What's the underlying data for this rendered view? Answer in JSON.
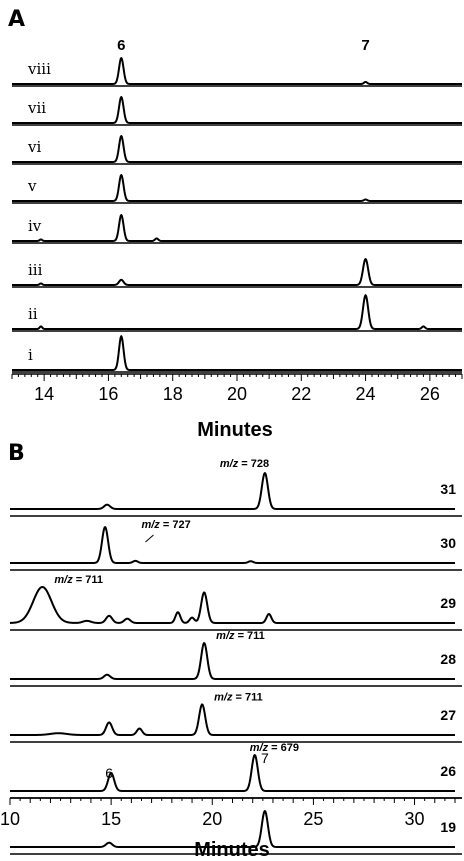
{
  "chart_data": [
    {
      "type": "line",
      "panel": "A",
      "xlabel": "Minutes",
      "xlim": [
        13,
        27
      ],
      "x_ticks": [
        14,
        16,
        18,
        20,
        22,
        24,
        26
      ],
      "peak_labels": [
        {
          "text": "6",
          "x": 16.4
        },
        {
          "text": "7",
          "x": 24.0
        }
      ],
      "series": [
        {
          "name": "viii",
          "peaks": [
            {
              "x": 16.4,
              "h": 1.0,
              "w": 0.07
            },
            {
              "x": 24.0,
              "h": 0.08,
              "w": 0.05
            }
          ]
        },
        {
          "name": "vii",
          "peaks": [
            {
              "x": 16.4,
              "h": 1.0,
              "w": 0.07
            }
          ]
        },
        {
          "name": "vi",
          "peaks": [
            {
              "x": 16.4,
              "h": 1.0,
              "w": 0.07
            }
          ]
        },
        {
          "name": "v",
          "peaks": [
            {
              "x": 16.4,
              "h": 1.0,
              "w": 0.07
            },
            {
              "x": 24.0,
              "h": 0.06,
              "w": 0.05
            }
          ]
        },
        {
          "name": "iv",
          "peaks": [
            {
              "x": 16.4,
              "h": 1.0,
              "w": 0.07
            },
            {
              "x": 17.5,
              "h": 0.1,
              "w": 0.05
            },
            {
              "x": 13.9,
              "h": 0.06,
              "w": 0.04
            }
          ]
        },
        {
          "name": "iii",
          "peaks": [
            {
              "x": 16.4,
              "h": 0.2,
              "w": 0.07
            },
            {
              "x": 24.0,
              "h": 1.0,
              "w": 0.08
            },
            {
              "x": 13.9,
              "h": 0.06,
              "w": 0.04
            }
          ]
        },
        {
          "name": "ii",
          "peaks": [
            {
              "x": 24.0,
              "h": 1.3,
              "w": 0.08
            },
            {
              "x": 25.8,
              "h": 0.1,
              "w": 0.05
            },
            {
              "x": 13.9,
              "h": 0.1,
              "w": 0.04
            }
          ]
        },
        {
          "name": "i",
          "peaks": [
            {
              "x": 16.4,
              "h": 1.3,
              "w": 0.07
            }
          ]
        }
      ]
    },
    {
      "type": "line",
      "panel": "B",
      "xlabel": "Minutes",
      "xlim": [
        10,
        32
      ],
      "x_ticks": [
        10,
        15,
        20,
        25,
        30
      ],
      "series": [
        {
          "name": "31",
          "mz": "728",
          "peaks": [
            {
              "x": 14.8,
              "h": 0.12,
              "w": 0.15
            },
            {
              "x": 22.6,
              "h": 1.0,
              "w": 0.15
            }
          ]
        },
        {
          "name": "30",
          "mz": "727",
          "peaks": [
            {
              "x": 14.7,
              "h": 1.0,
              "w": 0.15
            },
            {
              "x": 16.2,
              "h": 0.06,
              "w": 0.12
            },
            {
              "x": 21.9,
              "h": 0.05,
              "w": 0.12
            }
          ]
        },
        {
          "name": "29",
          "mz": "711",
          "peaks": [
            {
              "x": 11.6,
              "h": 1.0,
              "w": 0.45
            },
            {
              "x": 13.8,
              "h": 0.06,
              "w": 0.2
            },
            {
              "x": 14.9,
              "h": 0.2,
              "w": 0.15
            },
            {
              "x": 15.8,
              "h": 0.12,
              "w": 0.15
            },
            {
              "x": 18.3,
              "h": 0.3,
              "w": 0.12
            },
            {
              "x": 19.0,
              "h": 0.15,
              "w": 0.12
            },
            {
              "x": 19.6,
              "h": 0.85,
              "w": 0.15
            },
            {
              "x": 22.8,
              "h": 0.25,
              "w": 0.12
            }
          ]
        },
        {
          "name": "28",
          "mz": "711",
          "peaks": [
            {
              "x": 14.8,
              "h": 0.12,
              "w": 0.15
            },
            {
              "x": 19.6,
              "h": 1.0,
              "w": 0.15
            }
          ]
        },
        {
          "name": "27",
          "mz": "711",
          "peaks": [
            {
              "x": 12.4,
              "h": 0.05,
              "w": 0.4
            },
            {
              "x": 14.9,
              "h": 0.35,
              "w": 0.15
            },
            {
              "x": 16.4,
              "h": 0.18,
              "w": 0.13
            },
            {
              "x": 19.5,
              "h": 0.85,
              "w": 0.15
            }
          ]
        },
        {
          "name": "26",
          "mz": "679",
          "peaks": [
            {
              "x": 15.0,
              "h": 0.5,
              "w": 0.15
            },
            {
              "x": 22.1,
              "h": 1.0,
              "w": 0.15
            }
          ]
        },
        {
          "name": "19",
          "peaks": [
            {
              "x": 14.9,
              "h": 0.12,
              "w": 0.15
            },
            {
              "x": 22.6,
              "h": 1.0,
              "w": 0.15
            }
          ]
        }
      ],
      "peak_labels": [
        {
          "text": "6",
          "x": 14.9
        },
        {
          "text": "7",
          "x": 22.6
        }
      ]
    }
  ],
  "labels": {
    "panel_a": "A",
    "panel_b": "B",
    "mz_prefix": "m/z",
    "mz_equals": " = "
  }
}
